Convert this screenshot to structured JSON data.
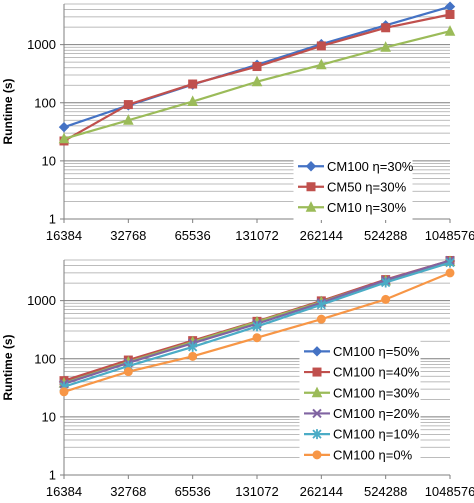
{
  "chart_data": [
    {
      "type": "line",
      "ylabel": "Runtime (s)",
      "yscale": "log",
      "ylim": [
        1,
        5000
      ],
      "categories": [
        "16384",
        "32768",
        "65536",
        "131072",
        "262144",
        "524288",
        "1048576"
      ],
      "yticks": [
        "1",
        "10",
        "100",
        "1000"
      ],
      "grid": true,
      "legend_position": "bottom-right",
      "series": [
        {
          "name": "CM100 η=30%",
          "color": "#4472C4",
          "marker": "diamond",
          "values": [
            38,
            90,
            205,
            450,
            1020,
            2150,
            4500
          ]
        },
        {
          "name": "CM50 η=30%",
          "color": "#C0504D",
          "marker": "square",
          "values": [
            22,
            93,
            210,
            420,
            950,
            1950,
            3300
          ]
        },
        {
          "name": "CM10 η=30%",
          "color": "#9BBB59",
          "marker": "triangle",
          "values": [
            24,
            50,
            105,
            230,
            450,
            900,
            1700
          ]
        }
      ]
    },
    {
      "type": "line",
      "ylabel": "Runtime (s)",
      "yscale": "log",
      "ylim": [
        1,
        5000
      ],
      "categories": [
        "16384",
        "32768",
        "65536",
        "131072",
        "262144",
        "524288",
        "1048576"
      ],
      "yticks": [
        "1",
        "10",
        "100",
        "1000"
      ],
      "grid": true,
      "legend_position": "bottom-right",
      "series": [
        {
          "name": "CM100 η=50%",
          "color": "#4472C4",
          "marker": "diamond",
          "values": [
            40,
            92,
            200,
            430,
            980,
            2250,
            4800
          ]
        },
        {
          "name": "CM100 η=40%",
          "color": "#C0504D",
          "marker": "square",
          "values": [
            42,
            95,
            205,
            440,
            990,
            2300,
            4900
          ]
        },
        {
          "name": "CM100 η=30%",
          "color": "#9BBB59",
          "marker": "triangle",
          "values": [
            38,
            88,
            195,
            430,
            950,
            2200,
            4700
          ]
        },
        {
          "name": "CM100 η=20%",
          "color": "#8064A2",
          "marker": "x",
          "values": [
            37,
            85,
            185,
            400,
            920,
            2250,
            4900
          ]
        },
        {
          "name": "CM100 η=10%",
          "color": "#4BACC6",
          "marker": "star",
          "values": [
            33,
            75,
            160,
            360,
            850,
            2050,
            4500
          ]
        },
        {
          "name": "CM100 η=0%",
          "color": "#F79646",
          "marker": "circle",
          "values": [
            27,
            60,
            110,
            230,
            480,
            1050,
            3000
          ]
        }
      ]
    }
  ]
}
